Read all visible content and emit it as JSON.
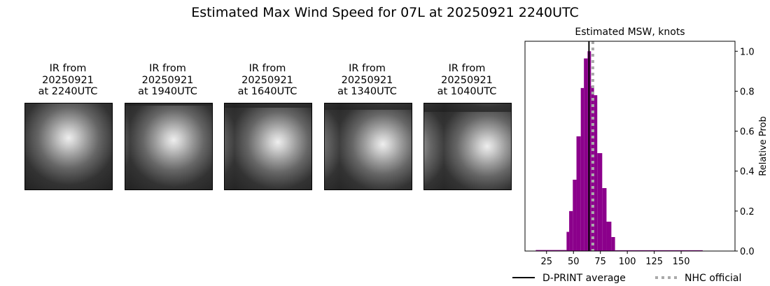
{
  "title": "Estimated Max Wind Speed for 07L at 20250921 2240UTC",
  "panels": [
    {
      "line1": "IR from",
      "line2": "20250921",
      "line3": "at 2240UTC"
    },
    {
      "line1": "IR from",
      "line2": "20250921",
      "line3": "at 1940UTC"
    },
    {
      "line1": "IR from",
      "line2": "20250921",
      "line3": "at 1640UTC"
    },
    {
      "line1": "IR from",
      "line2": "20250921",
      "line3": "at 1340UTC"
    },
    {
      "line1": "IR from",
      "line2": "20250921",
      "line3": "at 1040UTC"
    }
  ],
  "chart_data": {
    "type": "bar",
    "title": "Estimated MSW, knots",
    "ylabel": "Relative Prob",
    "xlim": [
      5,
      200
    ],
    "ylim": [
      0,
      1.05
    ],
    "xticks": [
      25,
      50,
      75,
      100,
      125,
      150
    ],
    "yticks": [
      0.0,
      0.2,
      0.4,
      0.6,
      0.8,
      1.0
    ],
    "bar_color": "#8b008b",
    "bins": [
      {
        "x0": 15,
        "x1": 43.6,
        "y": 0.005
      },
      {
        "x0": 43.6,
        "x1": 46.0,
        "y": 0.096
      },
      {
        "x0": 46.0,
        "x1": 49.4,
        "y": 0.2
      },
      {
        "x0": 49.4,
        "x1": 52.8,
        "y": 0.357
      },
      {
        "x0": 52.8,
        "x1": 56.8,
        "y": 0.574
      },
      {
        "x0": 56.8,
        "x1": 59.7,
        "y": 0.816
      },
      {
        "x0": 59.7,
        "x1": 63.1,
        "y": 0.964
      },
      {
        "x0": 63.1,
        "x1": 66.3,
        "y": 1.0
      },
      {
        "x0": 66.3,
        "x1": 69.1,
        "y": 0.825
      },
      {
        "x0": 69.1,
        "x1": 72.1,
        "y": 0.78
      },
      {
        "x0": 72.1,
        "x1": 76.7,
        "y": 0.49
      },
      {
        "x0": 76.7,
        "x1": 80.7,
        "y": 0.315
      },
      {
        "x0": 80.7,
        "x1": 85.2,
        "y": 0.147
      },
      {
        "x0": 85.2,
        "x1": 88.6,
        "y": 0.07
      },
      {
        "x0": 88.6,
        "x1": 170,
        "y": 0.004
      }
    ],
    "dprint_average": 64.4,
    "nhc_official": 68,
    "legend": [
      {
        "label": "D-PRINT average",
        "color": "#000000"
      },
      {
        "label": "NHC official",
        "color": "#aaaaaa"
      }
    ],
    "legend_placement": "bottom"
  }
}
